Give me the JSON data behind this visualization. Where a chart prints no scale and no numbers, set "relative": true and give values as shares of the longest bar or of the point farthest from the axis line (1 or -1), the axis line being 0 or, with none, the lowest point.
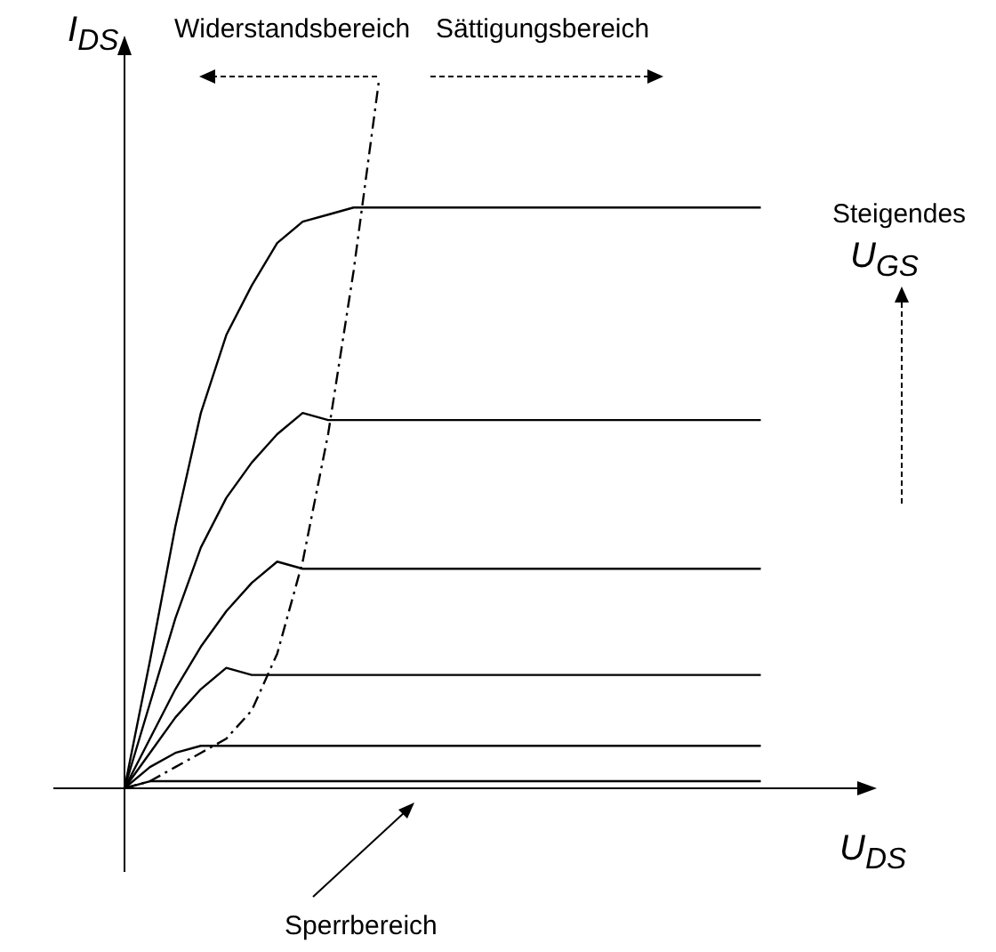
{
  "chart_data": {
    "type": "line",
    "relative": true,
    "xlabel": "U$_{DS}$",
    "ylabel": "I$_{DS}$",
    "categories": [
      null,
      null,
      null,
      null,
      null,
      null,
      null,
      null,
      null,
      null,
      null,
      null,
      null,
      null,
      null,
      null,
      null,
      null,
      null,
      null,
      null,
      null,
      null,
      null,
      null,
      null,
      null,
      null,
      null,
      null
    ],
    "annotations": [
      "Widerstandsbereich",
      "Sättigungsbereich",
      "Steigendes",
      "U$_{GS}$",
      "Sperrbereich"
    ],
    "series": [
      {
        "color": "#000000",
        "values": [
          0,
          0.18,
          0.37,
          0.53,
          0.64,
          0.71,
          0.77,
          0.8,
          0.81,
          0.82,
          0.82,
          0.82,
          0.82,
          0.82,
          0.82,
          0.82,
          0.82,
          0.82,
          0.82,
          0.82,
          0.82,
          0.82,
          0.82,
          0.82,
          0.82,
          0.82,
          null,
          null,
          null,
          null
        ]
      },
      {
        "color": "#000000",
        "values": [
          0,
          0.12,
          0.24,
          0.34,
          0.41,
          0.46,
          0.5,
          0.53,
          0.52,
          0.52,
          0.52,
          0.52,
          0.52,
          0.52,
          0.52,
          0.52,
          0.52,
          0.52,
          0.52,
          0.52,
          0.52,
          0.52,
          0.52,
          0.52,
          0.52,
          0.52,
          null,
          null,
          null,
          null
        ]
      },
      {
        "color": "#000000",
        "values": [
          0,
          0.07,
          0.14,
          0.2,
          0.25,
          0.29,
          0.32,
          0.31,
          0.31,
          0.31,
          0.31,
          0.31,
          0.31,
          0.31,
          0.31,
          0.31,
          0.31,
          0.31,
          0.31,
          0.31,
          0.31,
          0.31,
          0.31,
          0.31,
          0.31,
          0.31,
          null,
          null,
          null,
          null
        ]
      },
      {
        "color": "#000000",
        "values": [
          0,
          0.05,
          0.1,
          0.14,
          0.17,
          0.16,
          0.16,
          0.16,
          0.16,
          0.16,
          0.16,
          0.16,
          0.16,
          0.16,
          0.16,
          0.16,
          0.16,
          0.16,
          0.16,
          0.16,
          0.16,
          0.16,
          0.16,
          0.16,
          0.16,
          0.16,
          null,
          null,
          null,
          null
        ]
      },
      {
        "color": "#000000",
        "values": [
          0,
          0.03,
          0.05,
          0.06,
          0.06,
          0.06,
          0.06,
          0.06,
          0.06,
          0.06,
          0.06,
          0.06,
          0.06,
          0.06,
          0.06,
          0.06,
          0.06,
          0.06,
          0.06,
          0.06,
          0.06,
          0.06,
          0.06,
          0.06,
          0.06,
          0.06,
          null,
          null,
          null,
          null
        ]
      },
      {
        "color": "#000000",
        "values": [
          0,
          0.01,
          0.01,
          0.01,
          0.01,
          0.01,
          0.01,
          0.01,
          0.01,
          0.01,
          0.01,
          0.01,
          0.01,
          0.01,
          0.01,
          0.01,
          0.01,
          0.01,
          0.01,
          0.01,
          0.01,
          0.01,
          0.01,
          0.01,
          0.01,
          0.01,
          null,
          null,
          null,
          null
        ]
      },
      {
        "color": "#000000",
        "line_style": "dashed",
        "values": [
          0,
          0.01,
          0.03,
          0.05,
          0.07,
          0.11,
          0.19,
          0.32,
          0.5,
          0.73,
          1,
          null,
          null,
          null,
          null,
          null,
          null,
          null,
          null,
          null,
          null,
          null,
          null,
          null,
          null,
          null,
          null,
          null,
          null,
          null
        ]
      }
    ]
  }
}
